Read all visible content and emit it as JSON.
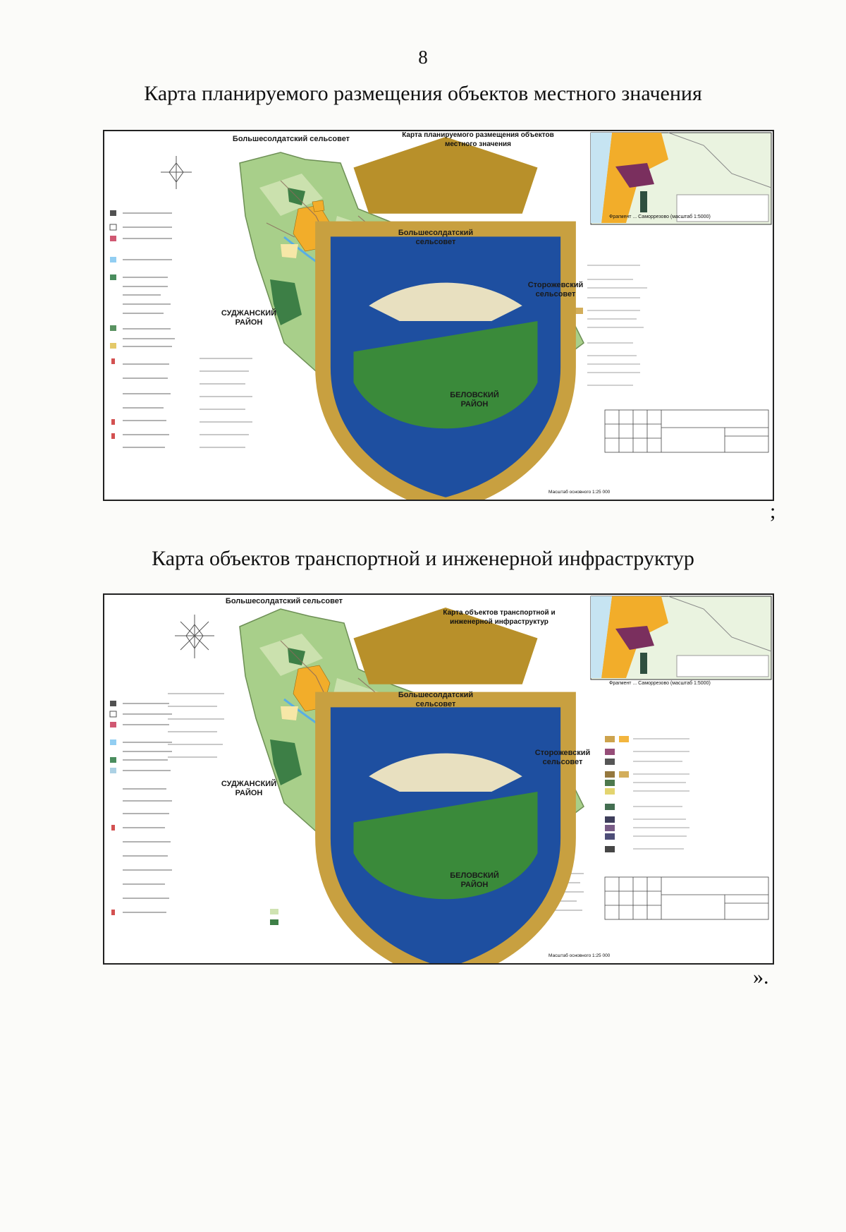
{
  "page": {
    "number": "8",
    "trailing_semicolon": ";",
    "trailing_quote": "»."
  },
  "maps": [
    {
      "heading": "Карта планируемого размещения объектов местного значения",
      "inner_title": "Карта  планируемого размещения объектов\nместного значения",
      "labels": {
        "north": "Большесолдатский сельсовет",
        "east_mid": "Большесолдатский\nсельсовет",
        "storozh": "Сторожевский\nсельсовет",
        "sudzha": "СУДЖАНСКИЙ\nРАЙОН",
        "belov": "БЕЛОВСКИЙ\nРАЙОН"
      },
      "inset_caption": "Фрагмент ... Саморрезово (масштаб 1:5000)",
      "scale_caption": "Масштаб основного 1:25 000",
      "colors": {
        "land": "#a8cf8a",
        "forest": "#3d7f46",
        "settlement": "#f2ad2a",
        "field": "#cfe3b2",
        "water": "#58aee6"
      }
    },
    {
      "heading": "Карта объектов транспортной и инженерной инфраструктур",
      "inner_title": "Карта объектов транспортной и\nинженерной инфраструктур",
      "labels": {
        "north": "Большесолдатский сельсовет",
        "east_mid": "Большесолдатский\nсельсовет",
        "storozh": "Сторожевский\nсельсовет",
        "sudzha": "СУДЖАНСКИЙ\nРАЙОН",
        "belov": "БЕЛОВСКИЙ\nРАЙОН"
      },
      "inset_caption": "Фрагмент ... Саморрезово (масштаб 1:5000)",
      "scale_caption": "Масштаб основного 1:25 000",
      "colors": {
        "land": "#a8cf8a",
        "forest": "#3d7f46",
        "settlement": "#f2ad2a",
        "field": "#cfe3b2",
        "water": "#58aee6"
      }
    }
  ]
}
